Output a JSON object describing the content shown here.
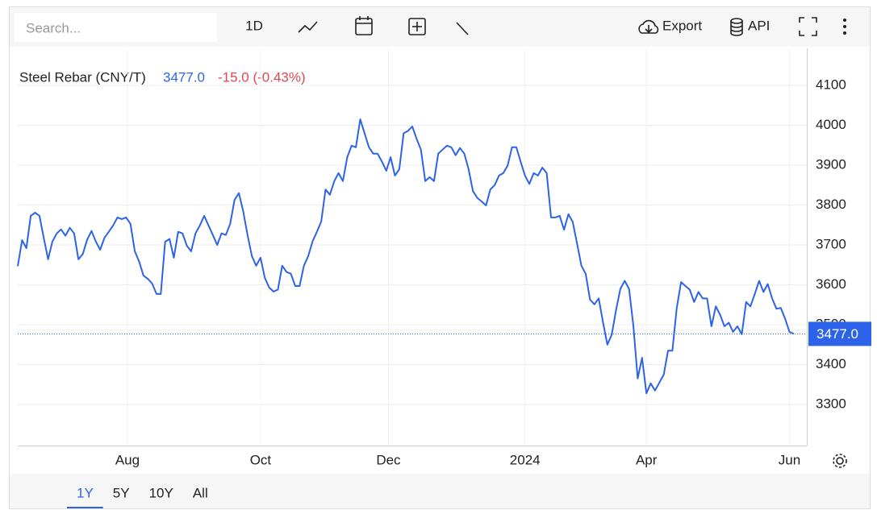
{
  "toolbar": {
    "search_placeholder": "Search...",
    "interval": "1D",
    "export": "Export",
    "api": "API"
  },
  "ranges": {
    "items": [
      "1Y",
      "5Y",
      "10Y",
      "All"
    ],
    "active": 0
  },
  "chart_data": {
    "type": "line",
    "title": "Steel Rebar (CNY/T)",
    "price": {
      "value": 3477,
      "label": "3477.0"
    },
    "change": "-15.0 (-0.43%)",
    "color": "#2d63e8",
    "grid": true,
    "ylim": [
      3197,
      4193
    ],
    "yticks": [
      3300,
      3400,
      3500,
      3600,
      3700,
      3800,
      3900,
      4000,
      4100
    ],
    "xlim": [
      0,
      182
    ],
    "xticks": [
      {
        "value": 25.3,
        "label": "Aug"
      },
      {
        "value": 56,
        "label": "Oct"
      },
      {
        "value": 85.5,
        "label": "Dec"
      },
      {
        "value": 117,
        "label": "2024"
      },
      {
        "value": 145,
        "label": "Apr"
      },
      {
        "value": 178,
        "label": "Jun"
      }
    ],
    "values": [
      3647,
      3712,
      3692,
      3773,
      3781,
      3773,
      3718,
      3664,
      3709,
      3729,
      3739,
      3723,
      3743,
      3729,
      3664,
      3677,
      3713,
      3735,
      3709,
      3688,
      3718,
      3733,
      3749,
      3769,
      3765,
      3769,
      3753,
      3684,
      3658,
      3623,
      3615,
      3603,
      3577,
      3577,
      3708,
      3715,
      3668,
      3733,
      3729,
      3698,
      3684,
      3729,
      3749,
      3773,
      3749,
      3725,
      3700,
      3729,
      3725,
      3753,
      3813,
      3830,
      3785,
      3725,
      3672,
      3648,
      3668,
      3617,
      3593,
      3583,
      3588,
      3648,
      3632,
      3628,
      3597,
      3597,
      3648,
      3672,
      3709,
      3733,
      3759,
      3839,
      3826,
      3860,
      3880,
      3860,
      3920,
      3949,
      3945,
      4015,
      3980,
      3945,
      3929,
      3929,
      3909,
      3886,
      3920,
      3874,
      3890,
      3980,
      3986,
      3997,
      3966,
      3939,
      3860,
      3870,
      3860,
      3929,
      3939,
      3949,
      3945,
      3925,
      3943,
      3929,
      3889,
      3835,
      3818,
      3809,
      3799,
      3839,
      3850,
      3874,
      3880,
      3899,
      3945,
      3945,
      3909,
      3874,
      3853,
      3880,
      3874,
      3894,
      3880,
      3769,
      3769,
      3773,
      3738,
      3777,
      3758,
      3704,
      3648,
      3628,
      3563,
      3551,
      3566,
      3506,
      3450,
      3475,
      3537,
      3590,
      3610,
      3590,
      3496,
      3365,
      3417,
      3328,
      3353,
      3335,
      3355,
      3375,
      3435,
      3435,
      3542,
      3607,
      3597,
      3588,
      3557,
      3582,
      3566,
      3566,
      3496,
      3546,
      3525,
      3496,
      3505,
      3482,
      3496,
      3476,
      3557,
      3546,
      3577,
      3610,
      3582,
      3602,
      3566,
      3540,
      3542,
      3515,
      3482,
      3477
    ]
  }
}
